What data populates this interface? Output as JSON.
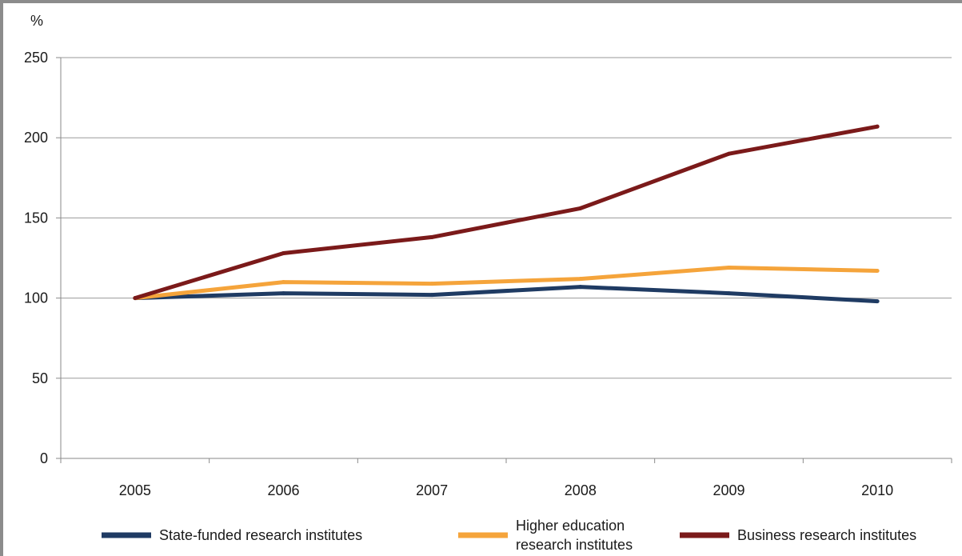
{
  "chart_data": {
    "type": "line",
    "title": "",
    "xlabel": "",
    "ylabel": "%",
    "x": [
      "2005",
      "2006",
      "2007",
      "2008",
      "2009",
      "2010"
    ],
    "ylim": [
      0,
      250
    ],
    "yticks": [
      0,
      50,
      100,
      150,
      200,
      250
    ],
    "grid": true,
    "legend_position": "bottom",
    "series": [
      {
        "name": "State-funded research institutes",
        "name_lines": [
          "State-funded research institutes"
        ],
        "color": "#1f3b63",
        "values": [
          100,
          103,
          102,
          107,
          103,
          98
        ]
      },
      {
        "name": "Higher education research institutes",
        "name_lines": [
          "Higher education",
          "research institutes"
        ],
        "color": "#f5a43b",
        "values": [
          100,
          110,
          109,
          112,
          119,
          117
        ]
      },
      {
        "name": "Business research institutes",
        "name_lines": [
          "Business research institutes"
        ],
        "color": "#7b1a1a",
        "values": [
          100,
          128,
          138,
          156,
          190,
          207
        ]
      }
    ]
  }
}
